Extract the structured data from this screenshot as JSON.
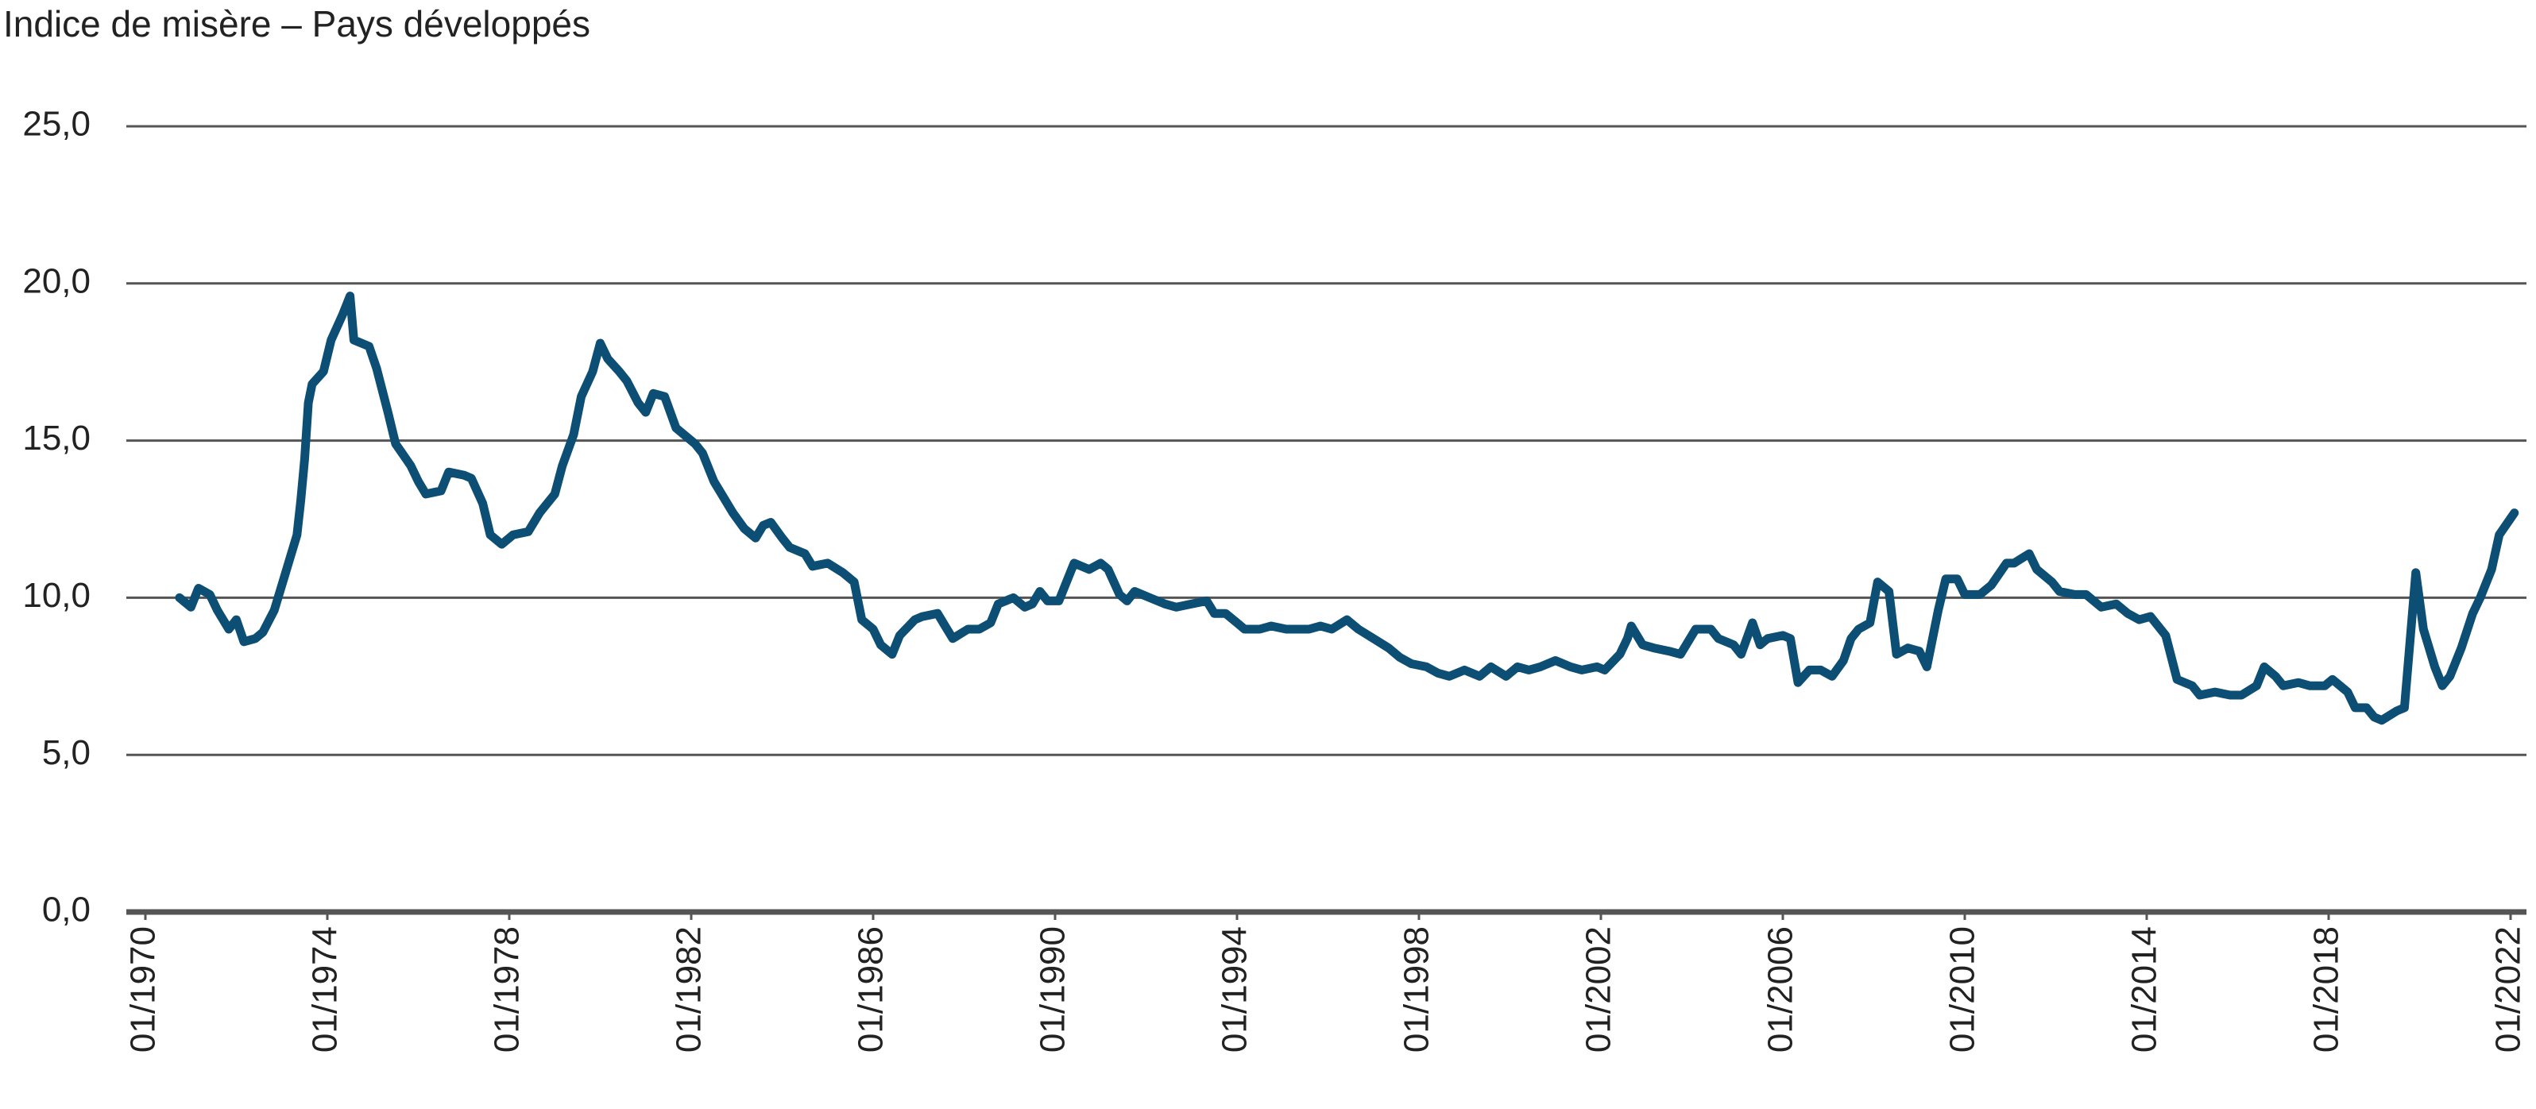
{
  "chart_data": {
    "type": "line",
    "title": "Indice de misère – Pays développés",
    "xlim": [
      "01/1970",
      "04/2022"
    ],
    "xticks": [
      "01/1970",
      "01/1974",
      "01/1978",
      "01/1982",
      "01/1986",
      "01/1990",
      "01/1994",
      "01/1998",
      "01/2002",
      "01/2006",
      "01/2010",
      "01/2014",
      "01/2018",
      "01/2022"
    ],
    "ylim": [
      0,
      25
    ],
    "yticks": [
      {
        "value": 0,
        "label": "0,0"
      },
      {
        "value": 5,
        "label": "5,0"
      },
      {
        "value": 10,
        "label": "10,0"
      },
      {
        "value": 15,
        "label": "15,0"
      },
      {
        "value": 20,
        "label": "20,0"
      },
      {
        "value": 25,
        "label": "25,0"
      }
    ],
    "grid": true,
    "x": [
      "10/1970",
      "01/1971",
      "03/1971",
      "06/1971",
      "08/1971",
      "11/1971",
      "01/1972",
      "03/1972",
      "06/1972",
      "08/1972",
      "11/1972",
      "02/1973",
      "05/1973",
      "06/1973",
      "07/1973",
      "08/1973",
      "09/1973",
      "12/1973",
      "02/1974",
      "05/1974",
      "07/1974",
      "08/1974",
      "12/1974",
      "02/1975",
      "05/1975",
      "07/1975",
      "11/1975",
      "01/1976",
      "03/1976",
      "07/1976",
      "09/1976",
      "01/1977",
      "03/1977",
      "06/1977",
      "08/1977",
      "11/1977",
      "02/1978",
      "06/1978",
      "09/1978",
      "01/1979",
      "03/1979",
      "06/1979",
      "08/1979",
      "11/1979",
      "01/1980",
      "03/1980",
      "06/1980",
      "08/1980",
      "11/1980",
      "01/1981",
      "03/1981",
      "06/1981",
      "09/1981",
      "12/1981",
      "02/1982",
      "04/1982",
      "07/1982",
      "09/1982",
      "12/1982",
      "03/1983",
      "06/1983",
      "08/1983",
      "10/1983",
      "01/1984",
      "03/1984",
      "07/1984",
      "09/1984",
      "01/1985",
      "05/1985",
      "08/1985",
      "10/1985",
      "01/1986",
      "03/1986",
      "06/1986",
      "08/1986",
      "12/1986",
      "02/1987",
      "06/1987",
      "08/1987",
      "10/1987",
      "02/1988",
      "05/1988",
      "08/1988",
      "10/1988",
      "02/1989",
      "05/1989",
      "07/1989",
      "09/1989",
      "11/1989",
      "02/1990",
      "06/1990",
      "08/1990",
      "10/1990",
      "01/1991",
      "03/1991",
      "06/1991",
      "08/1991",
      "10/1991",
      "02/1992",
      "06/1992",
      "09/1992",
      "01/1993",
      "05/1993",
      "07/1993",
      "10/1993",
      "01/1994",
      "03/1994",
      "07/1994",
      "10/1994",
      "02/1995",
      "05/1995",
      "08/1995",
      "11/1995",
      "02/1996",
      "06/1996",
      "09/1996",
      "01/1997",
      "05/1997",
      "08/1997",
      "11/1997",
      "03/1998",
      "06/1998",
      "09/1998",
      "01/1999",
      "05/1999",
      "08/1999",
      "12/1999",
      "03/2000",
      "06/2000",
      "09/2000",
      "01/2001",
      "05/2001",
      "08/2001",
      "12/2001",
      "02/2002",
      "06/2002",
      "08/2002",
      "09/2002",
      "12/2002",
      "03/2003",
      "07/2003",
      "10/2003",
      "02/2004",
      "06/2004",
      "08/2004",
      "12/2004",
      "02/2005",
      "05/2005",
      "07/2005",
      "09/2005",
      "01/2006",
      "03/2006",
      "05/2006",
      "08/2006",
      "11/2006",
      "02/2007",
      "05/2007",
      "07/2007",
      "09/2007",
      "12/2007",
      "02/2008",
      "05/2008",
      "07/2008",
      "10/2008",
      "01/2009",
      "03/2009",
      "06/2009",
      "08/2009",
      "11/2009",
      "01/2010",
      "05/2010",
      "08/2010",
      "12/2010",
      "02/2011",
      "06/2011",
      "08/2011",
      "12/2011",
      "02/2012",
      "06/2012",
      "09/2012",
      "01/2013",
      "05/2013",
      "08/2013",
      "11/2013",
      "02/2014",
      "06/2014",
      "09/2014",
      "01/2015",
      "03/2015",
      "07/2015",
      "11/2015",
      "02/2016",
      "06/2016",
      "08/2016",
      "11/2016",
      "01/2017",
      "05/2017",
      "08/2017",
      "12/2017",
      "02/2018",
      "06/2018",
      "08/2018",
      "11/2018",
      "01/2019",
      "03/2019",
      "07/2019",
      "09/2019",
      "12/2019",
      "02/2020",
      "05/2020",
      "07/2020",
      "09/2020",
      "12/2020",
      "03/2021",
      "05/2021",
      "08/2021",
      "10/2021",
      "02/2022"
    ],
    "series": [
      {
        "name": "Indice de misère",
        "color": "#0d4e74",
        "values": [
          10.0,
          9.7,
          10.3,
          10.1,
          9.6,
          9.0,
          9.3,
          8.6,
          8.7,
          8.9,
          9.6,
          10.8,
          12.0,
          13.1,
          14.4,
          16.2,
          16.8,
          17.2,
          18.2,
          19.0,
          19.6,
          18.2,
          18.0,
          17.3,
          15.9,
          14.9,
          14.2,
          13.7,
          13.3,
          13.4,
          14.0,
          13.9,
          13.8,
          13.0,
          12.0,
          11.7,
          12.0,
          12.1,
          12.7,
          13.3,
          14.2,
          15.2,
          16.4,
          17.2,
          18.1,
          17.6,
          17.2,
          16.9,
          16.2,
          15.9,
          16.5,
          16.4,
          15.4,
          15.1,
          14.9,
          14.6,
          13.7,
          13.3,
          12.7,
          12.2,
          11.9,
          12.3,
          12.4,
          11.9,
          11.6,
          11.4,
          11.0,
          11.1,
          10.8,
          10.5,
          9.3,
          9.0,
          8.5,
          8.2,
          8.8,
          9.3,
          9.4,
          9.5,
          9.1,
          8.7,
          9.0,
          9.0,
          9.2,
          9.8,
          10.0,
          9.7,
          9.8,
          10.2,
          9.9,
          9.9,
          11.1,
          11.0,
          10.9,
          11.1,
          10.9,
          10.1,
          9.9,
          10.2,
          10.0,
          9.8,
          9.7,
          9.8,
          9.9,
          9.5,
          9.5,
          9.2,
          9.0,
          9.0,
          9.1,
          9.0,
          9.0,
          9.0,
          9.1,
          9.0,
          9.3,
          9.0,
          8.7,
          8.4,
          8.1,
          7.9,
          7.8,
          7.6,
          7.5,
          7.7,
          7.5,
          7.8,
          7.5,
          7.8,
          7.7,
          7.8,
          8.0,
          7.8,
          7.7,
          7.8,
          7.7,
          8.2,
          8.7,
          9.1,
          8.5,
          8.4,
          8.3,
          8.2,
          9.0,
          9.0,
          8.7,
          8.5,
          8.2,
          9.2,
          8.5,
          8.7,
          8.8,
          8.7,
          7.3,
          7.7,
          7.7,
          7.5,
          8.0,
          8.7,
          9.0,
          9.2,
          10.5,
          10.2,
          8.2,
          8.4,
          8.3,
          7.8,
          9.6,
          10.6,
          10.6,
          10.1,
          10.1,
          10.4,
          11.1,
          11.1,
          11.4,
          10.9,
          10.5,
          10.2,
          10.1,
          10.1,
          9.7,
          9.8,
          9.5,
          9.3,
          9.4,
          8.8,
          7.4,
          7.2,
          6.9,
          7.0,
          6.9,
          6.9,
          7.2,
          7.8,
          7.5,
          7.2,
          7.3,
          7.2,
          7.2,
          7.4,
          7.0,
          6.5,
          6.5,
          6.2,
          6.1,
          6.4,
          6.5,
          10.8,
          9.0,
          7.8,
          7.2,
          7.5,
          8.4,
          9.5,
          10.0,
          10.9,
          12.0,
          12.7
        ]
      }
    ]
  }
}
